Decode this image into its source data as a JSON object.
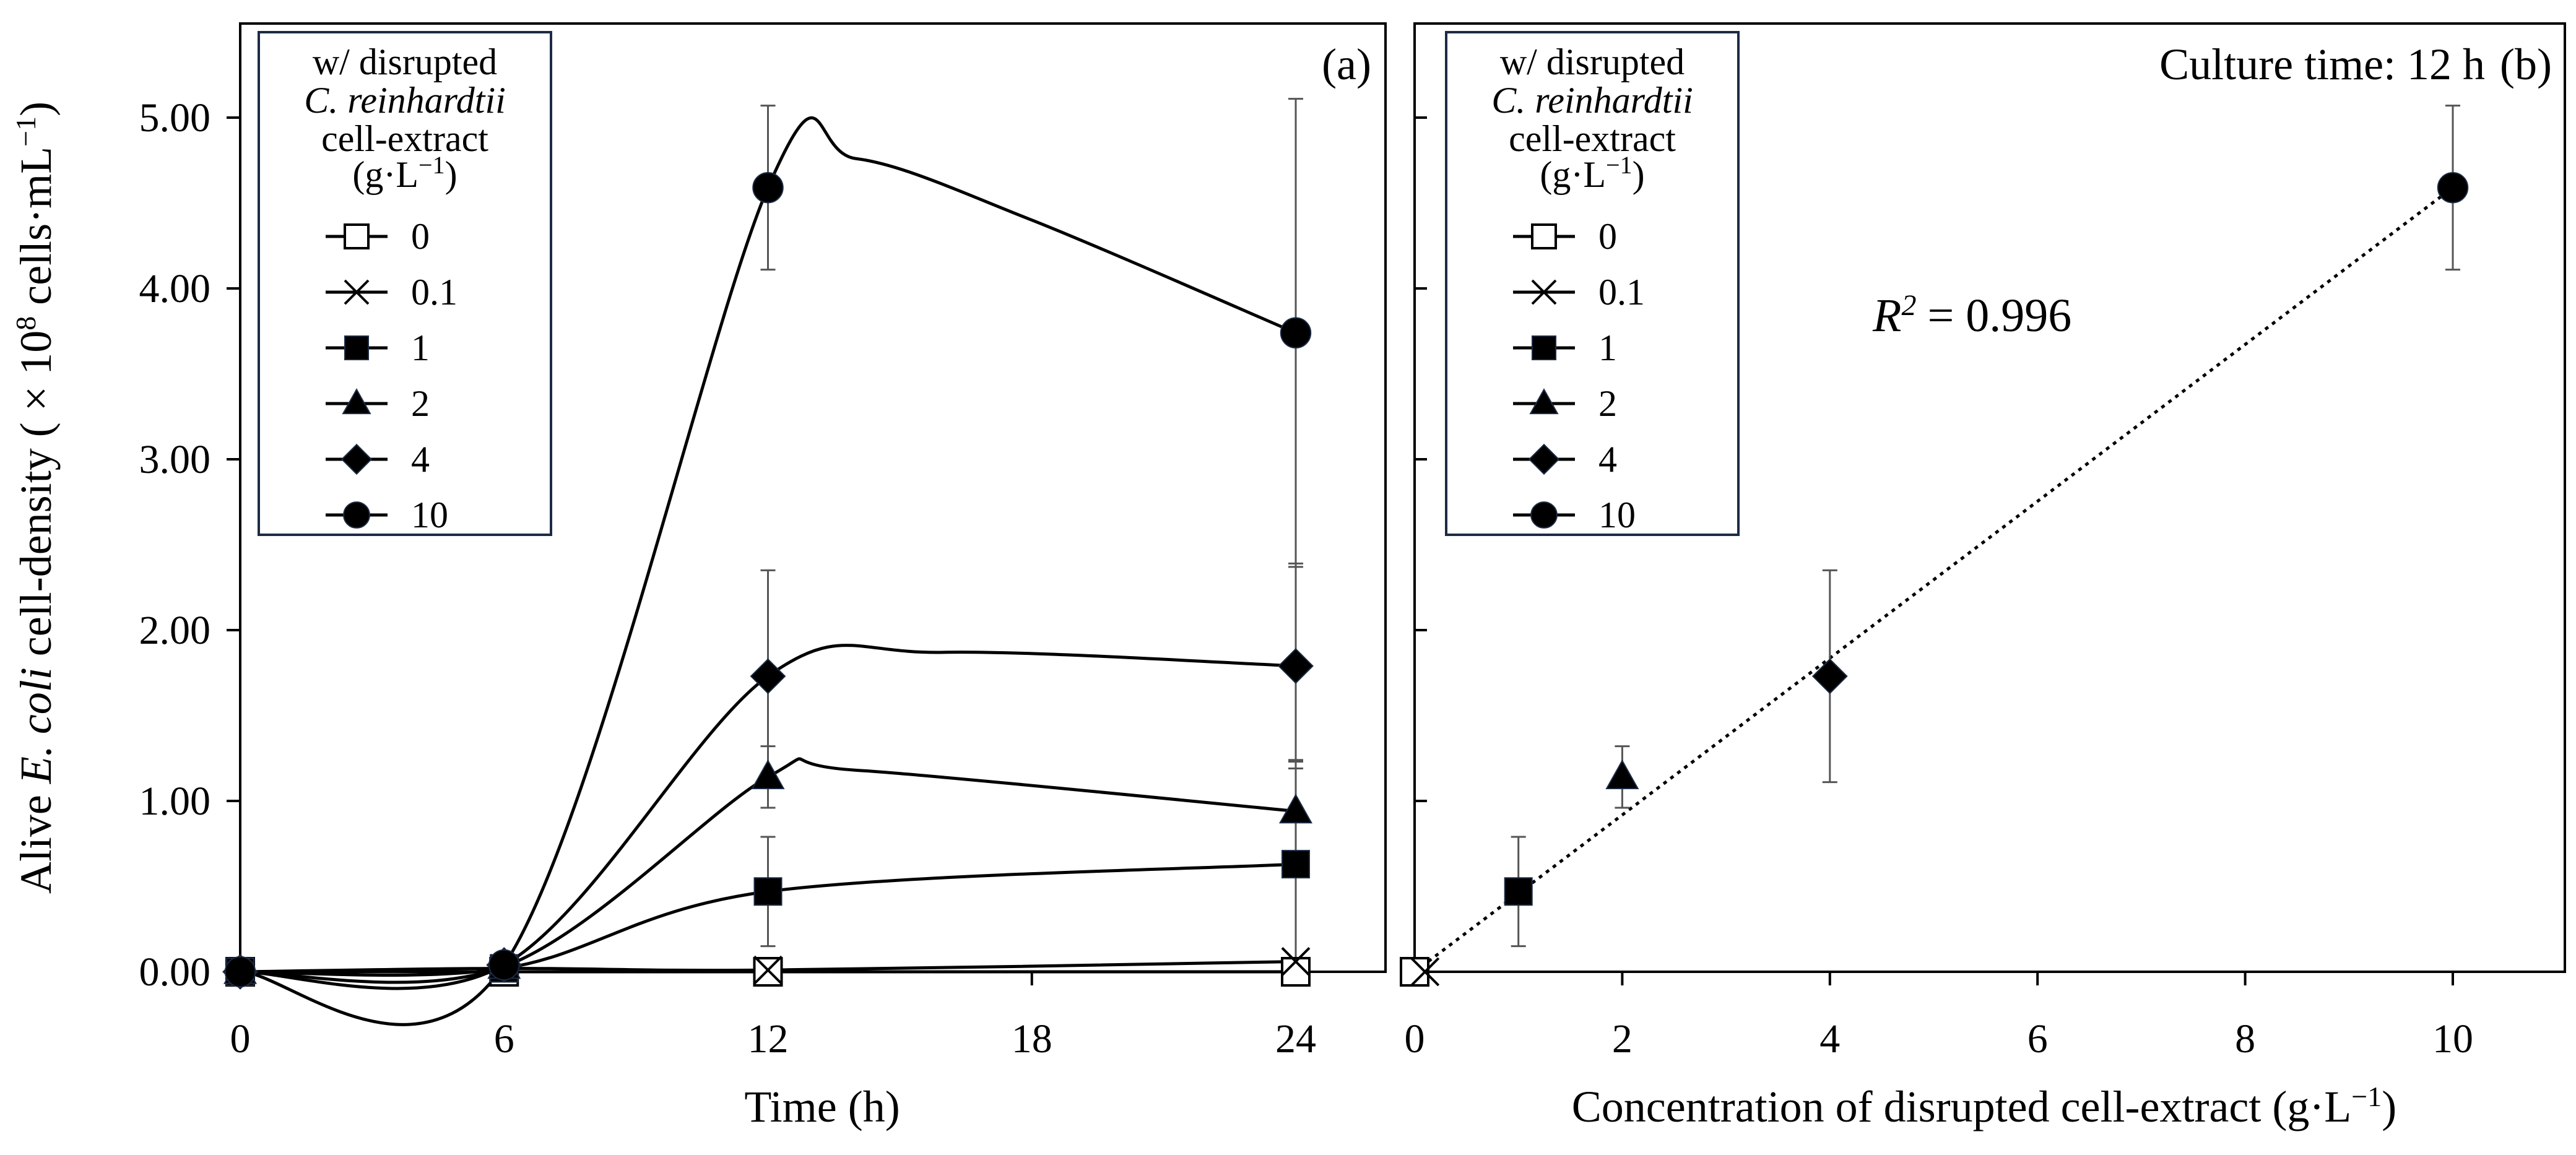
{
  "figure": {
    "panel_a_tag": "(a)",
    "panel_b_tag": "(b)",
    "culture_time": "Culture time: 12 h",
    "r2_symbol": "R",
    "r2_exponent": "2",
    "r2_value": "= 0.996"
  },
  "legend": {
    "line1": "w/ disrupted",
    "line2": "C. reinhardtii",
    "line3": "cell-extract",
    "line4_prefix": "(g·L",
    "line4_exponent": "−1",
    "line4_suffix": ")",
    "entries": [
      {
        "label": "0",
        "marker": "open-square-icon"
      },
      {
        "label": "0.1",
        "marker": "x-cross-icon"
      },
      {
        "label": "1",
        "marker": "filled-square-icon"
      },
      {
        "label": "2",
        "marker": "filled-triangle-icon"
      },
      {
        "label": "4",
        "marker": "filled-diamond-icon"
      },
      {
        "label": "10",
        "marker": "filled-circle-icon"
      }
    ]
  },
  "chart_data": [
    {
      "type": "line",
      "panel": "(a)",
      "title": "",
      "xlabel": "Time (h)",
      "ylabel_parts": {
        "prefix": "Alive ",
        "italic": "E. coli",
        "middle": " cell-density ( × 10",
        "exp1": "8",
        "unit": " cells·mL",
        "exp2": "−1",
        "suffix": ")"
      },
      "xlim": [
        0,
        26
      ],
      "ylim": [
        0,
        5.5
      ],
      "x_ticks": [
        0,
        6,
        12,
        18,
        24
      ],
      "x_tick_labels": [
        "0",
        "6",
        "12",
        "18",
        "24"
      ],
      "y_ticks": [
        0,
        1,
        2,
        3,
        4,
        5
      ],
      "y_tick_labels": [
        "0.00",
        "1.00",
        "2.00",
        "3.00",
        "4.00",
        "5.00"
      ],
      "grid": false,
      "legend_position": "top-left",
      "x": [
        0,
        6,
        12,
        24
      ],
      "series": [
        {
          "name": "0",
          "marker": "open-square",
          "values": [
            0.0,
            0.0,
            0.0,
            0.0
          ],
          "errors": [
            0,
            0,
            0,
            0
          ]
        },
        {
          "name": "0.1",
          "marker": "x",
          "values": [
            0.0,
            0.02,
            0.01,
            0.06
          ],
          "errors": [
            0,
            0,
            0,
            0
          ]
        },
        {
          "name": "1",
          "marker": "square",
          "values": [
            0.0,
            0.02,
            0.47,
            0.63
          ],
          "errors": [
            0,
            0,
            0.32,
            0.6
          ]
        },
        {
          "name": "2",
          "marker": "triangle",
          "values": [
            0.0,
            0.03,
            1.14,
            0.94
          ],
          "errors": [
            0,
            0,
            0.18,
            0.3
          ]
        },
        {
          "name": "4",
          "marker": "diamond",
          "values": [
            0.0,
            0.04,
            1.73,
            1.79
          ],
          "errors": [
            0,
            0,
            0.62,
            0.6
          ]
        },
        {
          "name": "10",
          "marker": "circle",
          "values": [
            0.0,
            0.04,
            4.59,
            3.74
          ],
          "errors": [
            0,
            0,
            0.48,
            1.37
          ]
        }
      ]
    },
    {
      "type": "scatter",
      "panel": "(b)",
      "title": "Culture time: 12 h",
      "xlabel_prefix": "Concentration of disrupted cell-extract (g·L",
      "xlabel_exponent": "−1",
      "xlabel_suffix": ")",
      "ylabel": "",
      "xlim": [
        0,
        10.6
      ],
      "ylim": [
        0,
        5.5
      ],
      "x_ticks": [
        0,
        2,
        4,
        6,
        8,
        10
      ],
      "x_tick_labels": [
        "0",
        "2",
        "4",
        "6",
        "8",
        "10"
      ],
      "y_ticks": [
        0,
        1,
        2,
        3,
        4,
        5
      ],
      "y_tick_labels": [],
      "grid": false,
      "legend_position": "top-left",
      "points": [
        {
          "name": "0",
          "marker": "open-square",
          "x": 0,
          "y": 0.0,
          "error": 0
        },
        {
          "name": "0.1",
          "marker": "x",
          "x": 0.1,
          "y": 0.0,
          "error": 0
        },
        {
          "name": "1",
          "marker": "square",
          "x": 1,
          "y": 0.47,
          "error": 0.32
        },
        {
          "name": "2",
          "marker": "triangle",
          "x": 2,
          "y": 1.14,
          "error": 0.18
        },
        {
          "name": "4",
          "marker": "diamond",
          "x": 4,
          "y": 1.73,
          "error": 0.62
        },
        {
          "name": "10",
          "marker": "circle",
          "x": 10,
          "y": 4.59,
          "error": 0.48
        }
      ],
      "fit": {
        "type": "linear",
        "x": [
          0,
          10
        ],
        "y": [
          0.0,
          4.59
        ],
        "r2": 0.996,
        "style": "dotted"
      }
    }
  ]
}
